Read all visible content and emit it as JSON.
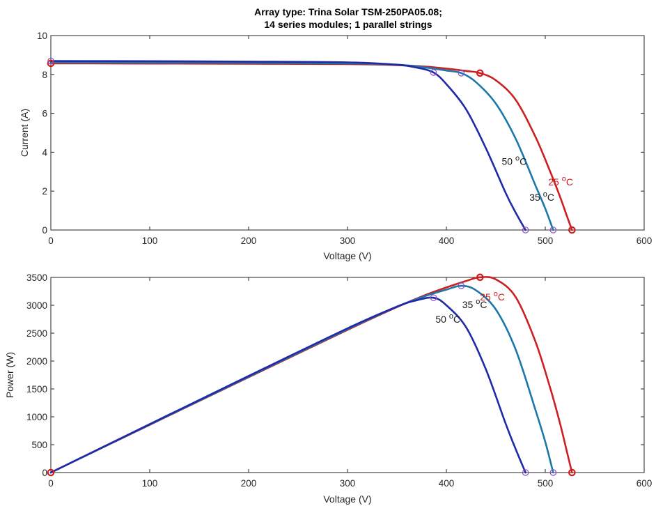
{
  "title": {
    "line1": "Array type: Trina Solar TSM-250PA05.08;",
    "line2": "14 series modules; 1 parallel strings"
  },
  "colors": {
    "t25": "#cc1f1f",
    "t35": "#1b78a8",
    "t50": "#1f2aa8",
    "mpp35_marker": "#8e4fc7",
    "axis": "#262626",
    "ann50": "#1a1a1a",
    "ann35": "#1a1a1a",
    "ann25": "#cc1f1f"
  },
  "chart_data": [
    {
      "type": "line",
      "title": "Array type: Trina Solar TSM-250PA05.08; 14 series modules; 1 parallel strings",
      "xlabel": "Voltage (V)",
      "ylabel": "Current (A)",
      "xlim": [
        0,
        600
      ],
      "ylim": [
        0,
        10
      ],
      "xticks": [
        0,
        100,
        200,
        300,
        400,
        500,
        600
      ],
      "yticks": [
        0,
        2,
        4,
        6,
        8,
        10
      ],
      "grid": false,
      "series": [
        {
          "name": "25 °C",
          "x": [
            0,
            100,
            200,
            300,
            350,
            380,
            400,
            420,
            434,
            450,
            470,
            490,
            505,
            515,
            522,
            527
          ],
          "y": [
            8.57,
            8.56,
            8.55,
            8.53,
            8.48,
            8.4,
            8.3,
            8.18,
            8.07,
            7.7,
            6.7,
            4.8,
            3.0,
            1.7,
            0.7,
            0
          ]
        },
        {
          "name": "35 °C",
          "x": [
            0,
            100,
            200,
            300,
            350,
            380,
            400,
            415,
            430,
            450,
            470,
            490,
            500,
            508
          ],
          "y": [
            8.62,
            8.61,
            8.6,
            8.57,
            8.5,
            8.35,
            8.2,
            8.07,
            7.6,
            6.5,
            4.7,
            2.3,
            1.1,
            0
          ]
        },
        {
          "name": "50 °C",
          "x": [
            0,
            100,
            200,
            300,
            350,
            370,
            387,
            400,
            420,
            440,
            460,
            470,
            480
          ],
          "y": [
            8.69,
            8.68,
            8.66,
            8.62,
            8.5,
            8.35,
            8.1,
            7.5,
            6.2,
            4.2,
            1.9,
            0.9,
            0
          ]
        }
      ],
      "markers": [
        {
          "series": "25 °C",
          "x": 434,
          "y": 8.07
        },
        {
          "series": "35 °C",
          "x": 415,
          "y": 8.07
        },
        {
          "series": "50 °C",
          "x": 387,
          "y": 8.1
        },
        {
          "series": "25 °C",
          "x": 527,
          "y": 0
        },
        {
          "series": "35 °C",
          "x": 508,
          "y": 0
        },
        {
          "series": "50 °C",
          "x": 480,
          "y": 0
        },
        {
          "series": "25 °C",
          "x": 0,
          "y": 8.57
        },
        {
          "series": "50 °C",
          "x": 0,
          "y": 8.69
        }
      ],
      "annotations": [
        {
          "series": "50 °C",
          "base": "50 ",
          "sup": "o",
          "unit": "C",
          "x": 456,
          "y": 3.35
        },
        {
          "series": "35 °C",
          "base": "35 ",
          "sup": "o",
          "unit": "C",
          "x": 484,
          "y": 1.5
        },
        {
          "series": "25 °C",
          "base": "25 ",
          "sup": "o",
          "unit": "C",
          "x": 503,
          "y": 2.3
        }
      ]
    },
    {
      "type": "line",
      "xlabel": "Voltage (V)",
      "ylabel": "Power (W)",
      "xlim": [
        0,
        600
      ],
      "ylim": [
        0,
        3500
      ],
      "xticks": [
        0,
        100,
        200,
        300,
        400,
        500,
        600
      ],
      "yticks": [
        0,
        500,
        1000,
        1500,
        2000,
        2500,
        3000,
        3500
      ],
      "grid": false,
      "series": [
        {
          "name": "25 °C",
          "x": [
            0,
            100,
            200,
            300,
            350,
            380,
            400,
            420,
            434,
            450,
            470,
            490,
            505,
            515,
            522,
            527
          ],
          "y": [
            0,
            856,
            1710,
            2559,
            2968,
            3192,
            3320,
            3436,
            3502,
            3465,
            3149,
            2352,
            1515,
            876,
            365,
            0
          ]
        },
        {
          "name": "35 °C",
          "x": [
            0,
            100,
            200,
            300,
            350,
            380,
            400,
            415,
            430,
            450,
            470,
            490,
            500,
            508
          ],
          "y": [
            0,
            861,
            1720,
            2571,
            2975,
            3173,
            3280,
            3349,
            3268,
            2925,
            2209,
            1127,
            550,
            0
          ]
        },
        {
          "name": "50 °C",
          "x": [
            0,
            100,
            200,
            300,
            350,
            370,
            387,
            400,
            420,
            440,
            460,
            470,
            480
          ],
          "y": [
            0,
            868,
            1732,
            2586,
            2975,
            3090,
            3135,
            3000,
            2604,
            1848,
            874,
            423,
            0
          ]
        }
      ],
      "markers": [
        {
          "series": "25 °C",
          "x": 434,
          "y": 3502
        },
        {
          "series": "35 °C",
          "x": 415,
          "y": 3349
        },
        {
          "series": "50 °C",
          "x": 387,
          "y": 3135
        },
        {
          "series": "25 °C",
          "x": 527,
          "y": 0
        },
        {
          "series": "35 °C",
          "x": 508,
          "y": 0
        },
        {
          "series": "50 °C",
          "x": 480,
          "y": 0
        },
        {
          "series": "25 °C",
          "x": 0,
          "y": 0
        }
      ],
      "annotations": [
        {
          "series": "50 °C",
          "base": "50 ",
          "sup": "o",
          "unit": "C",
          "x": 389,
          "y": 2690
        },
        {
          "series": "35 °C",
          "base": "35 ",
          "sup": "o",
          "unit": "C",
          "x": 416,
          "y": 2950
        },
        {
          "series": "25 °C",
          "base": "25 ",
          "sup": "o",
          "unit": "C",
          "x": 434,
          "y": 3090
        }
      ]
    }
  ]
}
